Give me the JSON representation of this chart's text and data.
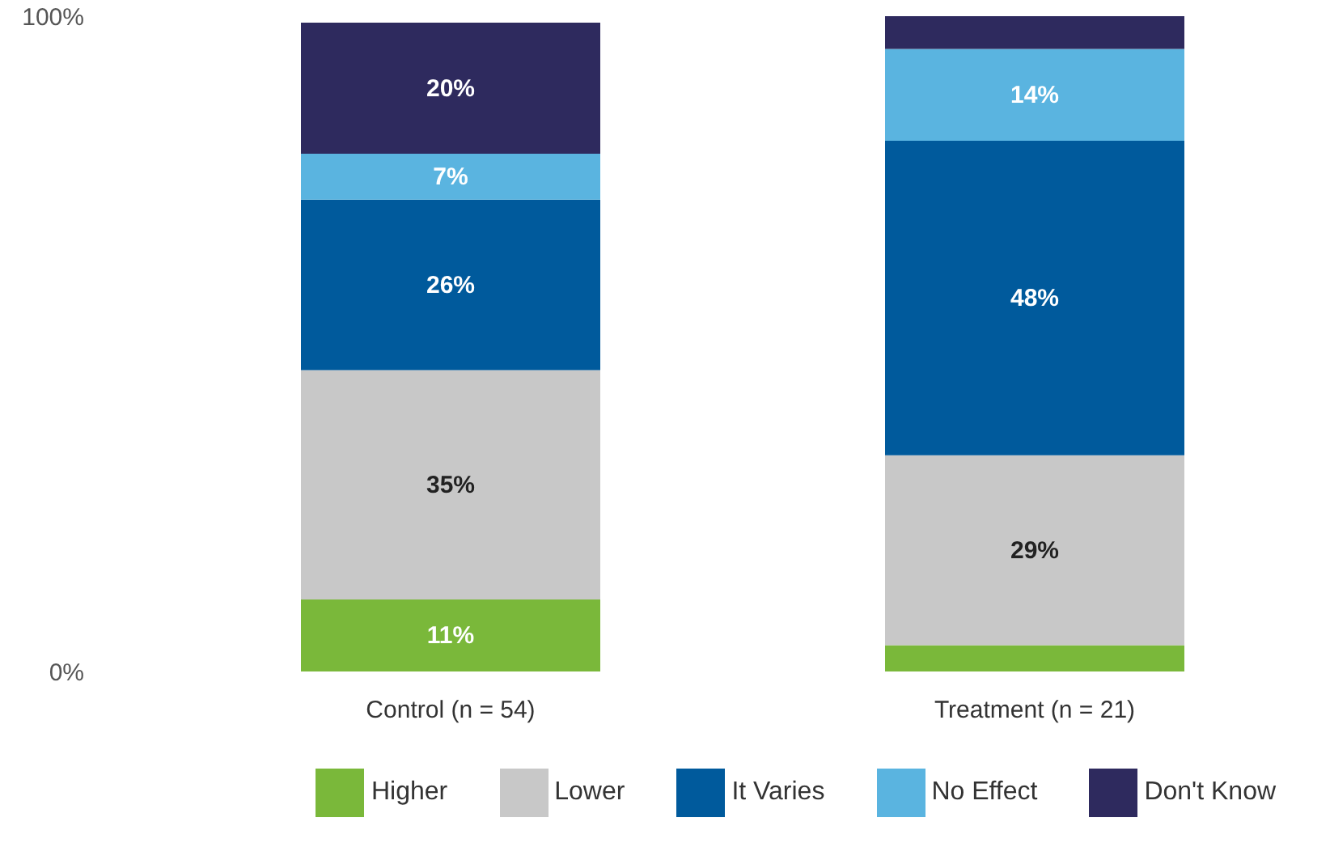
{
  "chart_data": {
    "type": "bar",
    "stacked": true,
    "categories": [
      "Control (n = 54)",
      "Treatment (n = 21)"
    ],
    "series": [
      {
        "name": "Higher",
        "color": "#7ab83a",
        "values": [
          11,
          4
        ],
        "value_labels": [
          "11%",
          null
        ]
      },
      {
        "name": "Lower",
        "color": "#c8c8c8",
        "values": [
          35,
          29
        ],
        "value_labels": [
          "35%",
          "29%"
        ]
      },
      {
        "name": "It Varies",
        "color": "#005a9c",
        "values": [
          26,
          48
        ],
        "value_labels": [
          "26%",
          "48%"
        ]
      },
      {
        "name": "No Effect",
        "color": "#5ab4e0",
        "values": [
          7,
          14
        ],
        "value_labels": [
          "7%",
          "14%"
        ]
      },
      {
        "name": "Don't Know",
        "color": "#2e2a5e",
        "values": [
          20,
          5
        ],
        "value_labels": [
          "20%",
          null
        ]
      }
    ],
    "ylim": [
      0,
      100
    ],
    "yticks": [
      {
        "value": 0,
        "label": "0%"
      },
      {
        "value": 100,
        "label": "100%"
      }
    ],
    "grid": false,
    "legend": "bottom"
  }
}
